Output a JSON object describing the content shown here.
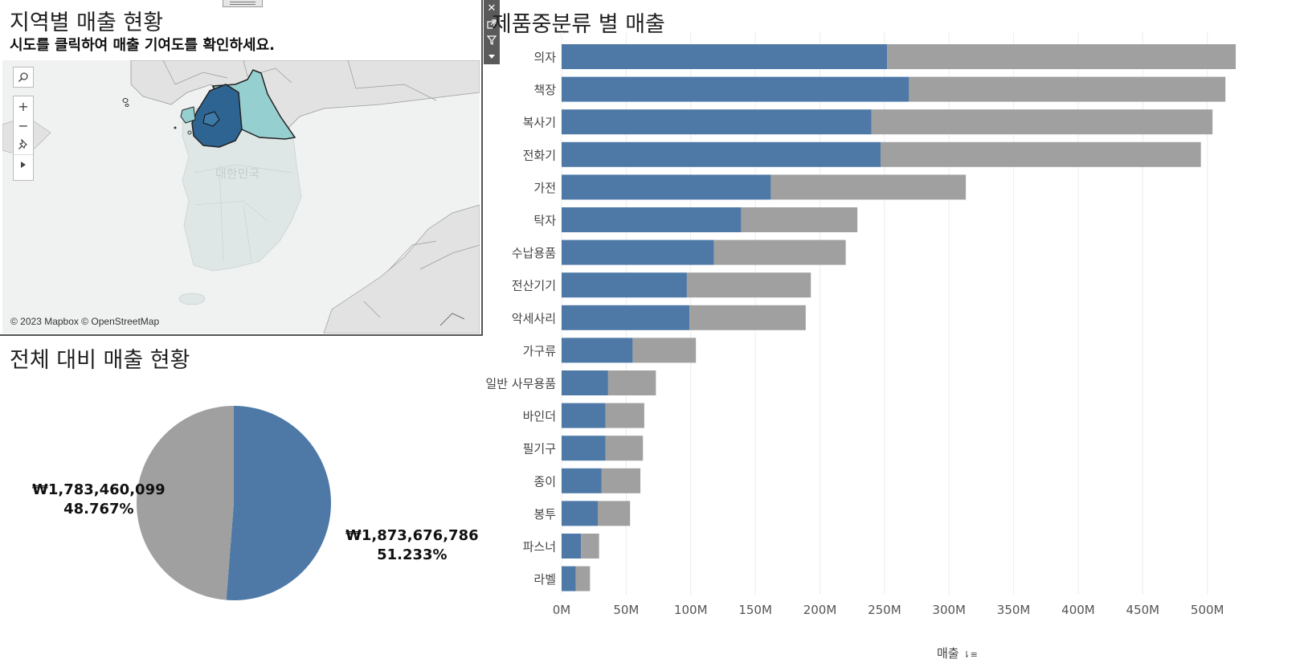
{
  "map": {
    "title": "지역별 매출 현황",
    "subtitle": "시도를 클릭하여 매출 기여도를 확인하세요.",
    "country_label": "대한민국",
    "attribution": "© 2023 Mapbox © OpenStreetMap",
    "controls": [
      "search-icon",
      "zoom-in-icon",
      "zoom-out-icon",
      "pin-icon",
      "play-icon"
    ],
    "colors": {
      "selected": "#2e6491",
      "highlight": "#96cfcf",
      "land": "#dfe6e6",
      "water": "#f0f2f1"
    }
  },
  "pie": {
    "title": "전체 대비 매출 현황",
    "slices": [
      {
        "value_label": "₩1,873,676,786",
        "percent_label": "51.233%",
        "percent": 51.233,
        "color": "#4e79a7"
      },
      {
        "value_label": "₩1,783,460,099",
        "percent_label": "48.767%",
        "percent": 48.767,
        "color": "#a0a0a0"
      }
    ]
  },
  "chart_data": {
    "type": "bar",
    "orientation": "horizontal",
    "stacked": true,
    "title": "제품중분류 별 매출",
    "xlabel": "매출",
    "ylabel": "",
    "xlim": [
      0,
      540
    ],
    "x_ticks": [
      "0M",
      "50M",
      "100M",
      "150M",
      "200M",
      "250M",
      "300M",
      "350M",
      "400M",
      "450M",
      "500M"
    ],
    "x_tick_values": [
      0,
      50,
      100,
      150,
      200,
      250,
      300,
      350,
      400,
      450,
      500
    ],
    "grid": true,
    "categories": [
      "의자",
      "책장",
      "복사기",
      "전화기",
      "가전",
      "탁자",
      "수납용품",
      "전산기기",
      "악세사리",
      "가구류",
      "일반 사무용품",
      "바인더",
      "필기구",
      "종이",
      "봉투",
      "파스너",
      "라벨"
    ],
    "series": [
      {
        "values": [
          252,
          269,
          240,
          247,
          162,
          139,
          118,
          97,
          99,
          55,
          36,
          34,
          34,
          31,
          28,
          15,
          11
        ],
        "color": "#4e79a7"
      },
      {
        "values": [
          270,
          245,
          264,
          248,
          151,
          90,
          102,
          96,
          90,
          49,
          37,
          30,
          29,
          30,
          25,
          14,
          11
        ],
        "color": "#a0a0a0"
      }
    ]
  }
}
